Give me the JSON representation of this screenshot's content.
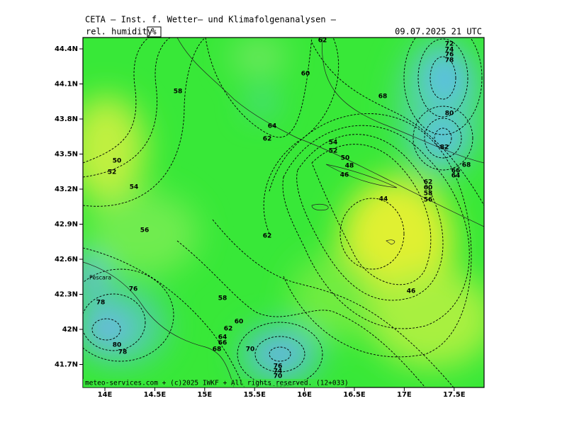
{
  "header": {
    "title": "CETA — Inst. f. Wetter— und Klimafolgenanalysen —",
    "variable": "rel. humidity",
    "unit": "%",
    "date": "09.07.2025 21 UTC"
  },
  "axes": {
    "lat": [
      "44.4N",
      "44.1N",
      "43.8N",
      "43.5N",
      "43.2N",
      "42.9N",
      "42.6N",
      "42.3N",
      "42N",
      "41.7N"
    ],
    "lon": [
      "14E",
      "14.5E",
      "15E",
      "15.5E",
      "16E",
      "16.5E",
      "17E",
      "17.5E"
    ]
  },
  "place": "Pescara",
  "contour_labels": [
    "62",
    "60",
    "58",
    "68",
    "72",
    "74",
    "76",
    "78",
    "80",
    "82",
    "68",
    "66",
    "64",
    "62",
    "60",
    "58",
    "56",
    "64",
    "62",
    "54",
    "52",
    "50",
    "48",
    "46",
    "44",
    "50",
    "52",
    "54",
    "56",
    "62",
    "46",
    "76",
    "78",
    "58",
    "60",
    "62",
    "64",
    "66",
    "68",
    "70",
    "80",
    "78",
    "76",
    "74",
    "70"
  ],
  "footer": "meteo-services.com + (c)2025 IWKF + All rights reserved. (12+033)"
}
